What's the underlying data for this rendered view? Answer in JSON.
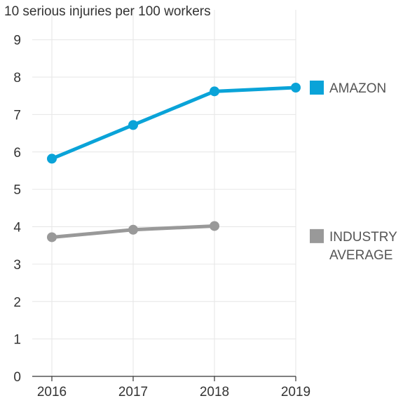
{
  "chart_data": {
    "type": "line",
    "title": "10 serious injuries per 100 workers",
    "categories": [
      "2016",
      "2017",
      "2018",
      "2019"
    ],
    "y_ticks": [
      "0",
      "1",
      "2",
      "3",
      "4",
      "5",
      "6",
      "7",
      "8",
      "9"
    ],
    "ylim": [
      0,
      9.8
    ],
    "grid": true,
    "legend_position": "right",
    "series": [
      {
        "name": "AMAZON",
        "name_lines": [
          "AMAZON"
        ],
        "color": "#0aa3d8",
        "values": [
          5.82,
          6.72,
          7.62,
          7.72
        ]
      },
      {
        "name": "INDUSTRY AVERAGE",
        "name_lines": [
          "INDUSTRY",
          "AVERAGE"
        ],
        "color": "#999999",
        "values": [
          3.72,
          3.92,
          4.02,
          null
        ]
      }
    ]
  }
}
